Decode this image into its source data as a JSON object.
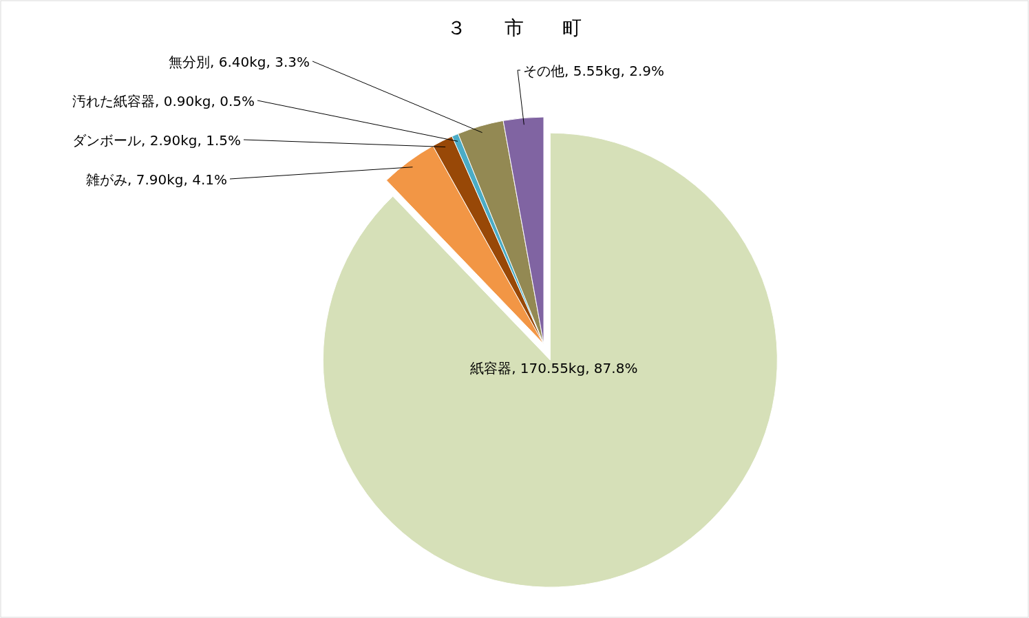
{
  "chart_data": {
    "type": "pie",
    "title": "３　　市　　町",
    "categories": [
      "紙容器",
      "雑がみ",
      "ダンボール",
      "汚れた紙容器",
      "無分別",
      "その他"
    ],
    "values": [
      170.55,
      7.9,
      2.9,
      0.9,
      6.4,
      5.55
    ],
    "value_labels": [
      ", 170.55kg, 87.8%",
      ", 7.90kg, 4.1%",
      ", 2.90kg, 1.5%",
      ", 0.90kg, 0.5%",
      ", 6.40kg, 3.3%",
      ", 5.55kg, 2.9%"
    ],
    "colors": [
      "#d6e0b8",
      "#f29645",
      "#984807",
      "#4bacc6",
      "#938953",
      "#8064a2"
    ]
  }
}
